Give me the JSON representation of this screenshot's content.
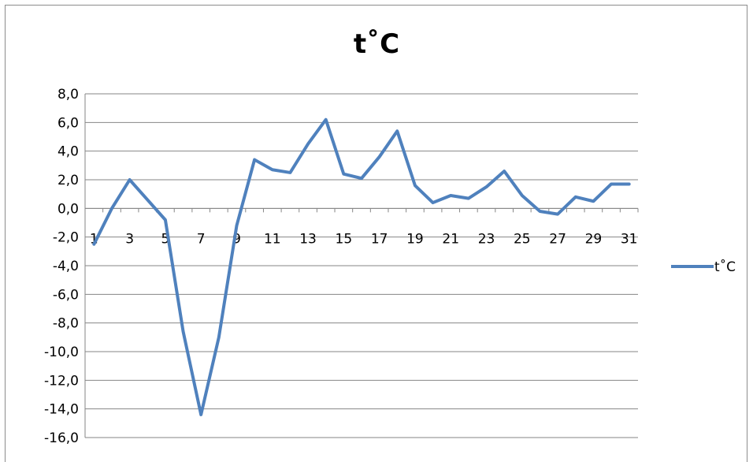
{
  "chart_data": {
    "type": "line",
    "title": "t˚C",
    "xlabel": "",
    "ylabel": "",
    "x": [
      1,
      2,
      3,
      4,
      5,
      6,
      7,
      8,
      9,
      10,
      11,
      12,
      13,
      14,
      15,
      16,
      17,
      18,
      19,
      20,
      21,
      22,
      23,
      24,
      25,
      26,
      27,
      28,
      29,
      30,
      31
    ],
    "x_tick_labels": [
      "1",
      "3",
      "5",
      "7",
      "9",
      "11",
      "13",
      "15",
      "17",
      "19",
      "21",
      "23",
      "25",
      "27",
      "29",
      "31"
    ],
    "y_tick_labels": [
      "8,0",
      "6,0",
      "4,0",
      "2,0",
      "0,0",
      "-2,0",
      "-4,0",
      "-6,0",
      "-8,0",
      "-10,0",
      "-12,0",
      "-14,0",
      "-16,0"
    ],
    "ylim": [
      -16,
      8
    ],
    "grid": true,
    "legend": "right",
    "series": [
      {
        "name": "t˚C",
        "color": "#4f81bd",
        "values": [
          -2.5,
          0.0,
          2.0,
          0.6,
          -0.8,
          -8.6,
          -14.4,
          -9.0,
          -1.2,
          3.4,
          2.7,
          2.5,
          4.5,
          6.2,
          2.4,
          2.1,
          3.6,
          5.4,
          1.6,
          0.4,
          0.9,
          0.7,
          1.5,
          2.6,
          0.9,
          -0.2,
          -0.4,
          0.8,
          0.5,
          1.7,
          1.7
        ]
      }
    ]
  }
}
